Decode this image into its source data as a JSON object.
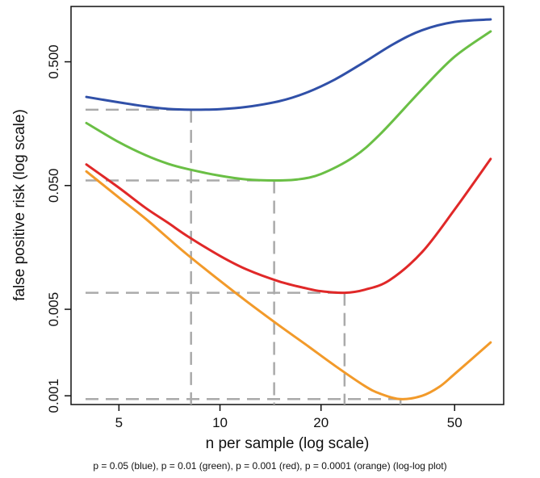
{
  "chart_data": {
    "type": "line",
    "xlabel": "n per sample (log scale)",
    "ylabel": "false positive risk (log scale)",
    "caption": "p = 0.05  (blue), p = 0.01  (green), p =  0.001  (red), p =  0.0001  (orange)   (log-log plot)",
    "x_scale": "log",
    "y_scale": "log",
    "xlim": [
      3.6,
      70
    ],
    "ylim": [
      0.00085,
      1.4
    ],
    "x_ticks": [
      5,
      10,
      20,
      50
    ],
    "x_tick_labels": [
      "5",
      "10",
      "20",
      "50"
    ],
    "y_ticks": [
      0.001,
      0.005,
      0.05,
      0.5
    ],
    "y_tick_labels": [
      "0.001",
      "0.005",
      "0.050",
      "0.500"
    ],
    "grid": false,
    "series": [
      {
        "color": "#3050a8",
        "x": [
          4,
          5,
          6,
          7,
          8.2,
          10,
          12,
          15,
          18,
          22,
          27,
          33,
          40,
          50,
          64
        ],
        "y": [
          0.26,
          0.235,
          0.218,
          0.208,
          0.205,
          0.207,
          0.216,
          0.24,
          0.28,
          0.36,
          0.5,
          0.7,
          0.9,
          1.05,
          1.1
        ]
      },
      {
        "color": "#6abf45",
        "x": [
          4,
          5,
          6,
          7,
          8,
          10,
          12,
          14.5,
          17,
          20,
          25,
          30,
          40,
          50,
          64
        ],
        "y": [
          0.16,
          0.112,
          0.088,
          0.075,
          0.068,
          0.06,
          0.056,
          0.055,
          0.056,
          0.062,
          0.085,
          0.13,
          0.3,
          0.55,
          0.88
        ]
      },
      {
        "color": "#e02828",
        "x": [
          4,
          5,
          6,
          7,
          8,
          10,
          12,
          15,
          18,
          20,
          23.5,
          27,
          32,
          40,
          50,
          64
        ],
        "y": [
          0.074,
          0.048,
          0.033,
          0.025,
          0.0195,
          0.0135,
          0.0105,
          0.0084,
          0.0074,
          0.007,
          0.0068,
          0.0072,
          0.0086,
          0.0145,
          0.032,
          0.082
        ]
      },
      {
        "color": "#f29a2a",
        "x": [
          4,
          5,
          6,
          7,
          8,
          10,
          12,
          15,
          18,
          22,
          27,
          30,
          34.5,
          40,
          45,
          50,
          64
        ],
        "y": [
          0.065,
          0.04,
          0.027,
          0.0188,
          0.0138,
          0.0085,
          0.0058,
          0.0037,
          0.0026,
          0.00175,
          0.0012,
          0.00104,
          0.00094,
          0.001,
          0.00118,
          0.0015,
          0.0027
        ]
      }
    ],
    "reference_lines": [
      {
        "x": 8.2,
        "y": 0.205
      },
      {
        "x": 14.5,
        "y": 0.055
      },
      {
        "x": 23.5,
        "y": 0.0068
      },
      {
        "x": 34.5,
        "y": 0.00094
      }
    ]
  },
  "colors": {
    "reference": "#aaaaaa",
    "axis": "#111111"
  }
}
